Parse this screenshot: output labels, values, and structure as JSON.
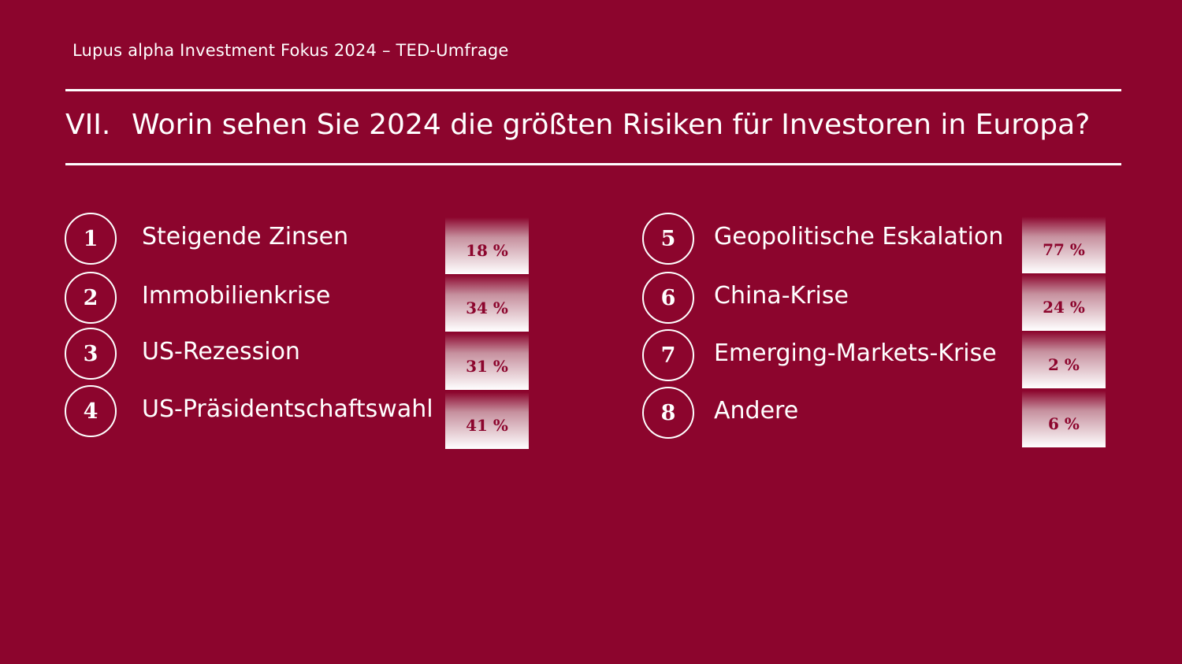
{
  "header": {
    "subtitle": "Lupus alpha Investment Fokus 2024 – TED-Umfrage",
    "title_number": "VII.",
    "title": "Worin sehen Sie 2024 die größten Risiken für Investoren in Europa?"
  },
  "items": [
    {
      "number": "1",
      "label": "Steigende Zinsen",
      "value": "18 %"
    },
    {
      "number": "2",
      "label": "Immobilienkrise",
      "value": "34 %"
    },
    {
      "number": "3",
      "label": "US-Rezession",
      "value": "31 %"
    },
    {
      "number": "4",
      "label": "US-Präsidentschaftswahl",
      "value": "41 %"
    },
    {
      "number": "5",
      "label": "Geopolitische Eskalation",
      "value": "77 %"
    },
    {
      "number": "6",
      "label": "China-Krise",
      "value": "24 %"
    },
    {
      "number": "7",
      "label": "Emerging-Markets-Krise",
      "value": "2 %"
    },
    {
      "number": "8",
      "label": "Andere",
      "value": "6 %"
    }
  ]
}
